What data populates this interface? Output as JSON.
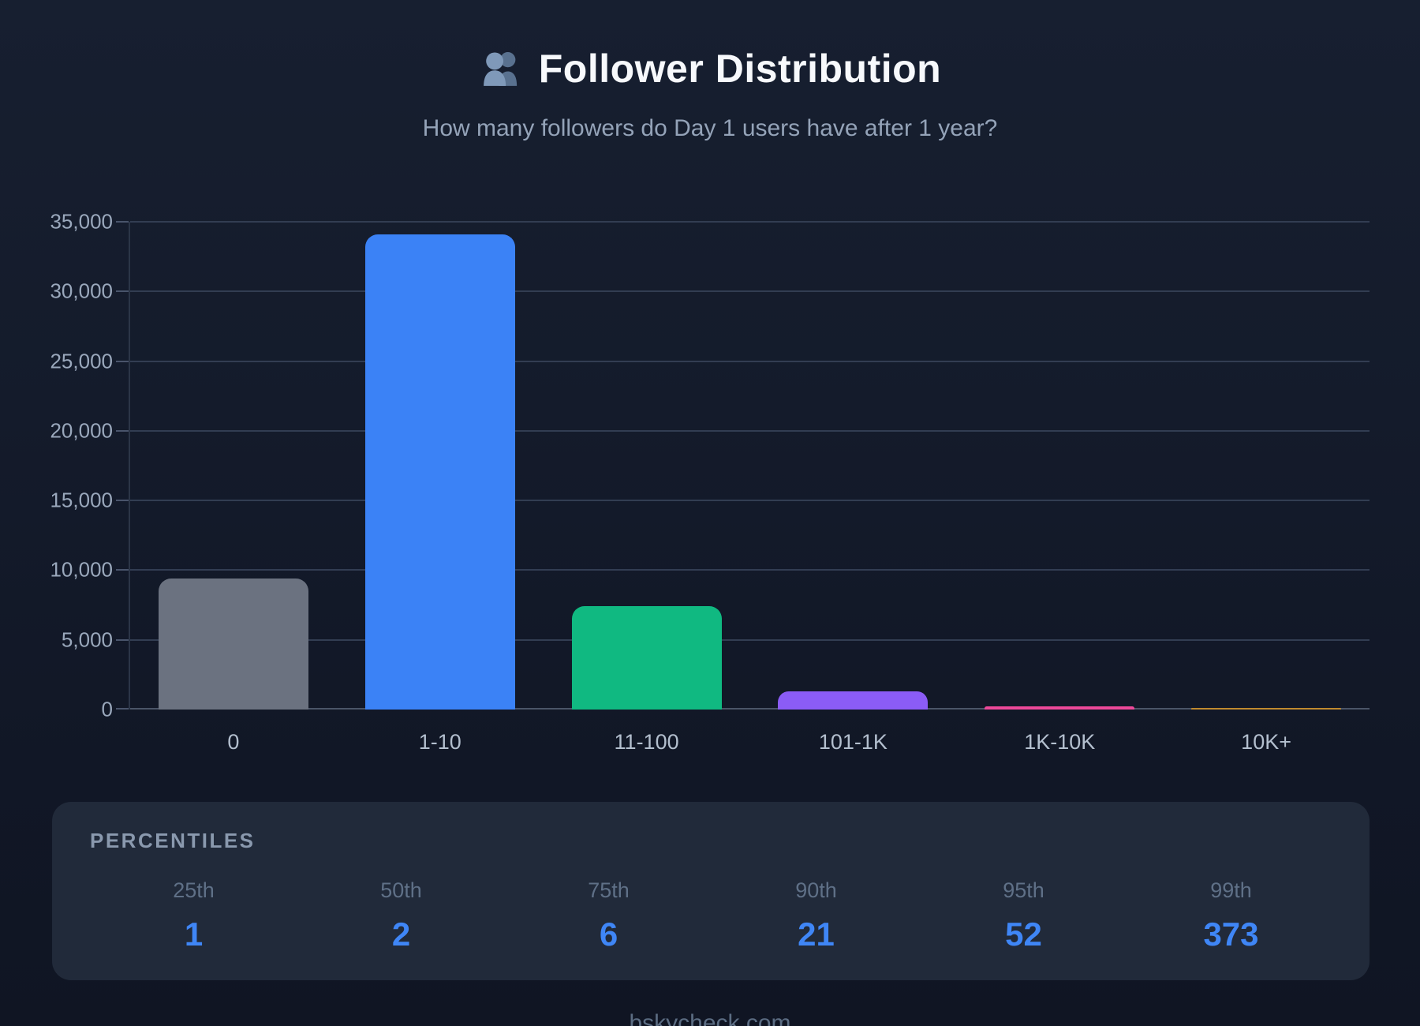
{
  "header": {
    "icon": "busts-in-silhouette-icon",
    "title": "Follower Distribution",
    "subtitle": "How many followers do Day 1 users have after 1 year?"
  },
  "chart_data": {
    "type": "bar",
    "title": "Follower Distribution",
    "categories": [
      "0",
      "1-10",
      "11-100",
      "101-1K",
      "1K-10K",
      "10K+"
    ],
    "values": [
      9400,
      34100,
      7400,
      1300,
      250,
      100
    ],
    "bar_colors": [
      "#6b7280",
      "#3b82f6",
      "#10b981",
      "#8b5cf6",
      "#ec4899",
      "#c08a2e"
    ],
    "xlabel": "",
    "ylabel": "",
    "ylim": [
      0,
      35000
    ],
    "ytick_interval": 5000,
    "yticks": [
      {
        "value": 35000,
        "label": "35,000"
      },
      {
        "value": 30000,
        "label": "30,000"
      },
      {
        "value": 25000,
        "label": "25,000"
      },
      {
        "value": 20000,
        "label": "20,000"
      },
      {
        "value": 15000,
        "label": "15,000"
      },
      {
        "value": 10000,
        "label": "10,000"
      },
      {
        "value": 5000,
        "label": "5,000"
      },
      {
        "value": 0,
        "label": "0"
      }
    ],
    "grid": true,
    "legend": false
  },
  "percentiles": {
    "heading": "PERCENTILES",
    "items": [
      {
        "label": "25th",
        "value": "1"
      },
      {
        "label": "50th",
        "value": "2"
      },
      {
        "label": "75th",
        "value": "6"
      },
      {
        "label": "90th",
        "value": "21"
      },
      {
        "label": "95th",
        "value": "52"
      },
      {
        "label": "99th",
        "value": "373"
      }
    ]
  },
  "footer": {
    "site": "bskycheck.com"
  },
  "colors": {
    "title_text": "#f7f9fc",
    "subtitle_text": "#94a3b8",
    "grid": "#323d52",
    "baseline": "#4a5568",
    "y_label": "#9aa8bc",
    "x_label": "#b3bfce",
    "panel_bg": "#212a3a",
    "percentile_value": "#3f86f6",
    "icon_front": "#7f99b9",
    "icon_back": "#59718f"
  }
}
